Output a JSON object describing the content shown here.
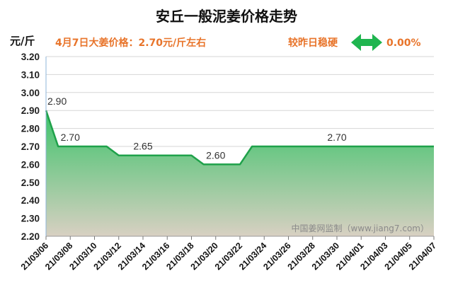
{
  "header": {
    "title": "安丘一般泥姜价格走势",
    "unit": "元/斤",
    "price_note": "4月7日大姜价格：2.70元/斤左右",
    "trend_label": "较昨日稳硬",
    "change": "0.00%",
    "trend_icon": "double-arrow-icon"
  },
  "watermark": "中国姜网监制（www.jiang7.com）",
  "colors": {
    "accent": "#e8742a",
    "line": "#1fa14a",
    "fill_top": "#3cc36a",
    "fill_bottom": "#d8d0c2",
    "arrow": "#1fb54f"
  },
  "chart_data": {
    "type": "area",
    "ylabel": "元/斤",
    "ylim": [
      2.2,
      3.2
    ],
    "yticks": [
      "3.20",
      "3.10",
      "3.00",
      "2.90",
      "2.80",
      "2.70",
      "2.60",
      "2.50",
      "2.40",
      "2.30",
      "2.20"
    ],
    "xticks": [
      "21/03/06",
      "21/03/08",
      "21/03/10",
      "21/03/12",
      "21/03/14",
      "21/03/16",
      "21/03/18",
      "21/03/20",
      "21/03/22",
      "21/03/24",
      "21/03/26",
      "21/03/28",
      "21/03/30",
      "21/04/01",
      "21/04/03",
      "21/04/05",
      "21/04/07"
    ],
    "points": [
      {
        "x": "21/03/06",
        "y": 2.9
      },
      {
        "x": "21/03/07",
        "y": 2.7
      },
      {
        "x": "21/03/11",
        "y": 2.7
      },
      {
        "x": "21/03/12",
        "y": 2.65
      },
      {
        "x": "21/03/18",
        "y": 2.65
      },
      {
        "x": "21/03/19",
        "y": 2.6
      },
      {
        "x": "21/03/22",
        "y": 2.6
      },
      {
        "x": "21/03/23",
        "y": 2.7
      },
      {
        "x": "21/04/07",
        "y": 2.7
      }
    ],
    "annotations": [
      {
        "x": "21/03/06",
        "y": 2.9,
        "text": "2.90"
      },
      {
        "x": "21/03/08",
        "y": 2.7,
        "text": "2.70"
      },
      {
        "x": "21/03/14",
        "y": 2.65,
        "text": "2.65"
      },
      {
        "x": "21/03/20",
        "y": 2.6,
        "text": "2.60"
      },
      {
        "x": "21/03/30",
        "y": 2.7,
        "text": "2.70"
      }
    ],
    "grid": true
  }
}
